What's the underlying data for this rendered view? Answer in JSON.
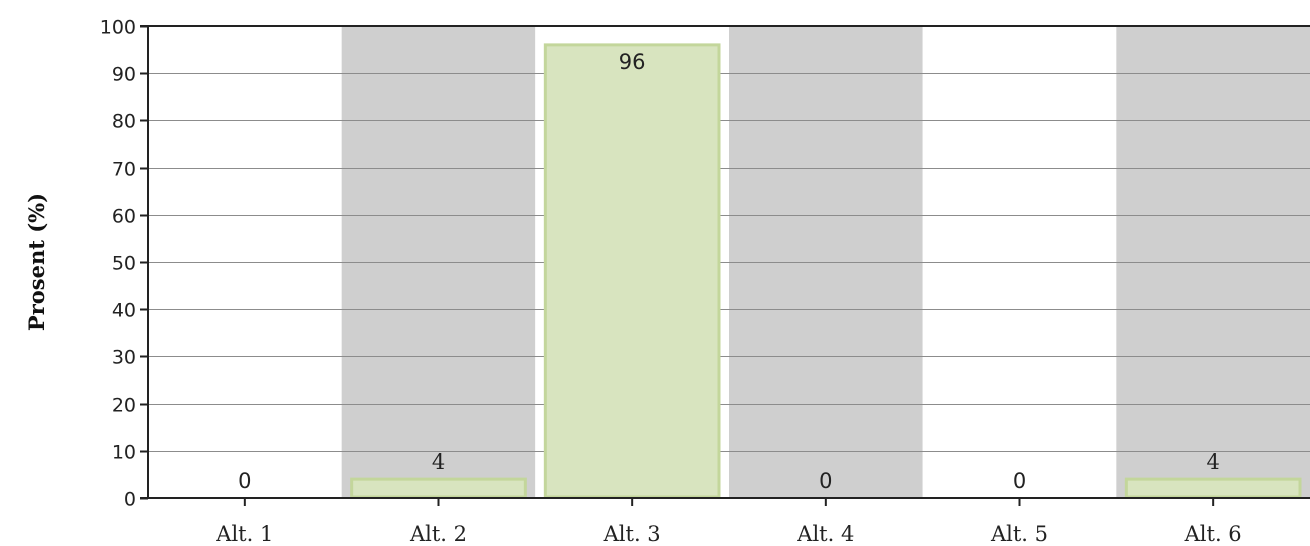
{
  "chart_data": {
    "type": "bar",
    "categories": [
      "Alt. 1",
      "Alt. 2",
      "Alt. 3",
      "Alt. 4",
      "Alt. 5",
      "Alt. 6"
    ],
    "values": [
      0,
      4,
      96,
      0,
      0,
      4
    ],
    "data_labels": [
      "0",
      "4",
      "96",
      "0",
      "0",
      "4"
    ],
    "title": "",
    "xlabel": "",
    "ylabel": "Prosent (%)",
    "ylim": [
      0,
      100
    ],
    "yticks": [
      0,
      10,
      20,
      30,
      40,
      50,
      60,
      70,
      80,
      90,
      100
    ],
    "ytick_labels": [
      "0",
      "10",
      "20",
      "30",
      "40",
      "50",
      "60",
      "70",
      "80",
      "90",
      "100"
    ],
    "grid": true,
    "alternating_band_colors": [
      "#ffffff",
      "#cfcfcf"
    ],
    "highlight_band_color": "#ffffff",
    "bar_fill": "#d8e4bf",
    "bar_stroke": "#c3d69b",
    "grid_color": "#8c8c8c",
    "axis_color": "#222222"
  }
}
